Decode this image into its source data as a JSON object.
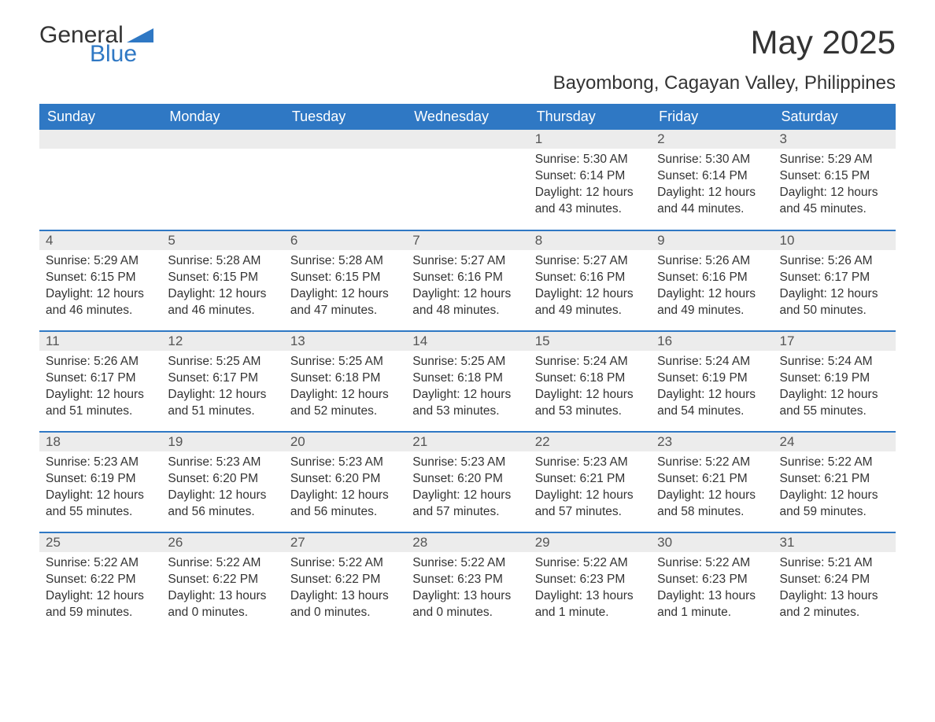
{
  "logo": {
    "general": "General",
    "blue": "Blue"
  },
  "title": "May 2025",
  "subtitle": "Bayombong, Cagayan Valley, Philippines",
  "colors": {
    "header_bg": "#2f78c4",
    "header_text": "#ffffff",
    "daynum_bg": "#ececec",
    "row_border": "#2f78c4",
    "text": "#333333",
    "logo_blue": "#2f78c4"
  },
  "day_headers": [
    "Sunday",
    "Monday",
    "Tuesday",
    "Wednesday",
    "Thursday",
    "Friday",
    "Saturday"
  ],
  "weeks": [
    [
      null,
      null,
      null,
      null,
      {
        "n": "1",
        "sunrise": "5:30 AM",
        "sunset": "6:14 PM",
        "daylight": "12 hours and 43 minutes."
      },
      {
        "n": "2",
        "sunrise": "5:30 AM",
        "sunset": "6:14 PM",
        "daylight": "12 hours and 44 minutes."
      },
      {
        "n": "3",
        "sunrise": "5:29 AM",
        "sunset": "6:15 PM",
        "daylight": "12 hours and 45 minutes."
      }
    ],
    [
      {
        "n": "4",
        "sunrise": "5:29 AM",
        "sunset": "6:15 PM",
        "daylight": "12 hours and 46 minutes."
      },
      {
        "n": "5",
        "sunrise": "5:28 AM",
        "sunset": "6:15 PM",
        "daylight": "12 hours and 46 minutes."
      },
      {
        "n": "6",
        "sunrise": "5:28 AM",
        "sunset": "6:15 PM",
        "daylight": "12 hours and 47 minutes."
      },
      {
        "n": "7",
        "sunrise": "5:27 AM",
        "sunset": "6:16 PM",
        "daylight": "12 hours and 48 minutes."
      },
      {
        "n": "8",
        "sunrise": "5:27 AM",
        "sunset": "6:16 PM",
        "daylight": "12 hours and 49 minutes."
      },
      {
        "n": "9",
        "sunrise": "5:26 AM",
        "sunset": "6:16 PM",
        "daylight": "12 hours and 49 minutes."
      },
      {
        "n": "10",
        "sunrise": "5:26 AM",
        "sunset": "6:17 PM",
        "daylight": "12 hours and 50 minutes."
      }
    ],
    [
      {
        "n": "11",
        "sunrise": "5:26 AM",
        "sunset": "6:17 PM",
        "daylight": "12 hours and 51 minutes."
      },
      {
        "n": "12",
        "sunrise": "5:25 AM",
        "sunset": "6:17 PM",
        "daylight": "12 hours and 51 minutes."
      },
      {
        "n": "13",
        "sunrise": "5:25 AM",
        "sunset": "6:18 PM",
        "daylight": "12 hours and 52 minutes."
      },
      {
        "n": "14",
        "sunrise": "5:25 AM",
        "sunset": "6:18 PM",
        "daylight": "12 hours and 53 minutes."
      },
      {
        "n": "15",
        "sunrise": "5:24 AM",
        "sunset": "6:18 PM",
        "daylight": "12 hours and 53 minutes."
      },
      {
        "n": "16",
        "sunrise": "5:24 AM",
        "sunset": "6:19 PM",
        "daylight": "12 hours and 54 minutes."
      },
      {
        "n": "17",
        "sunrise": "5:24 AM",
        "sunset": "6:19 PM",
        "daylight": "12 hours and 55 minutes."
      }
    ],
    [
      {
        "n": "18",
        "sunrise": "5:23 AM",
        "sunset": "6:19 PM",
        "daylight": "12 hours and 55 minutes."
      },
      {
        "n": "19",
        "sunrise": "5:23 AM",
        "sunset": "6:20 PM",
        "daylight": "12 hours and 56 minutes."
      },
      {
        "n": "20",
        "sunrise": "5:23 AM",
        "sunset": "6:20 PM",
        "daylight": "12 hours and 56 minutes."
      },
      {
        "n": "21",
        "sunrise": "5:23 AM",
        "sunset": "6:20 PM",
        "daylight": "12 hours and 57 minutes."
      },
      {
        "n": "22",
        "sunrise": "5:23 AM",
        "sunset": "6:21 PM",
        "daylight": "12 hours and 57 minutes."
      },
      {
        "n": "23",
        "sunrise": "5:22 AM",
        "sunset": "6:21 PM",
        "daylight": "12 hours and 58 minutes."
      },
      {
        "n": "24",
        "sunrise": "5:22 AM",
        "sunset": "6:21 PM",
        "daylight": "12 hours and 59 minutes."
      }
    ],
    [
      {
        "n": "25",
        "sunrise": "5:22 AM",
        "sunset": "6:22 PM",
        "daylight": "12 hours and 59 minutes."
      },
      {
        "n": "26",
        "sunrise": "5:22 AM",
        "sunset": "6:22 PM",
        "daylight": "13 hours and 0 minutes."
      },
      {
        "n": "27",
        "sunrise": "5:22 AM",
        "sunset": "6:22 PM",
        "daylight": "13 hours and 0 minutes."
      },
      {
        "n": "28",
        "sunrise": "5:22 AM",
        "sunset": "6:23 PM",
        "daylight": "13 hours and 0 minutes."
      },
      {
        "n": "29",
        "sunrise": "5:22 AM",
        "sunset": "6:23 PM",
        "daylight": "13 hours and 1 minute."
      },
      {
        "n": "30",
        "sunrise": "5:22 AM",
        "sunset": "6:23 PM",
        "daylight": "13 hours and 1 minute."
      },
      {
        "n": "31",
        "sunrise": "5:21 AM",
        "sunset": "6:24 PM",
        "daylight": "13 hours and 2 minutes."
      }
    ]
  ],
  "labels": {
    "sunrise": "Sunrise: ",
    "sunset": "Sunset: ",
    "daylight": "Daylight: "
  }
}
